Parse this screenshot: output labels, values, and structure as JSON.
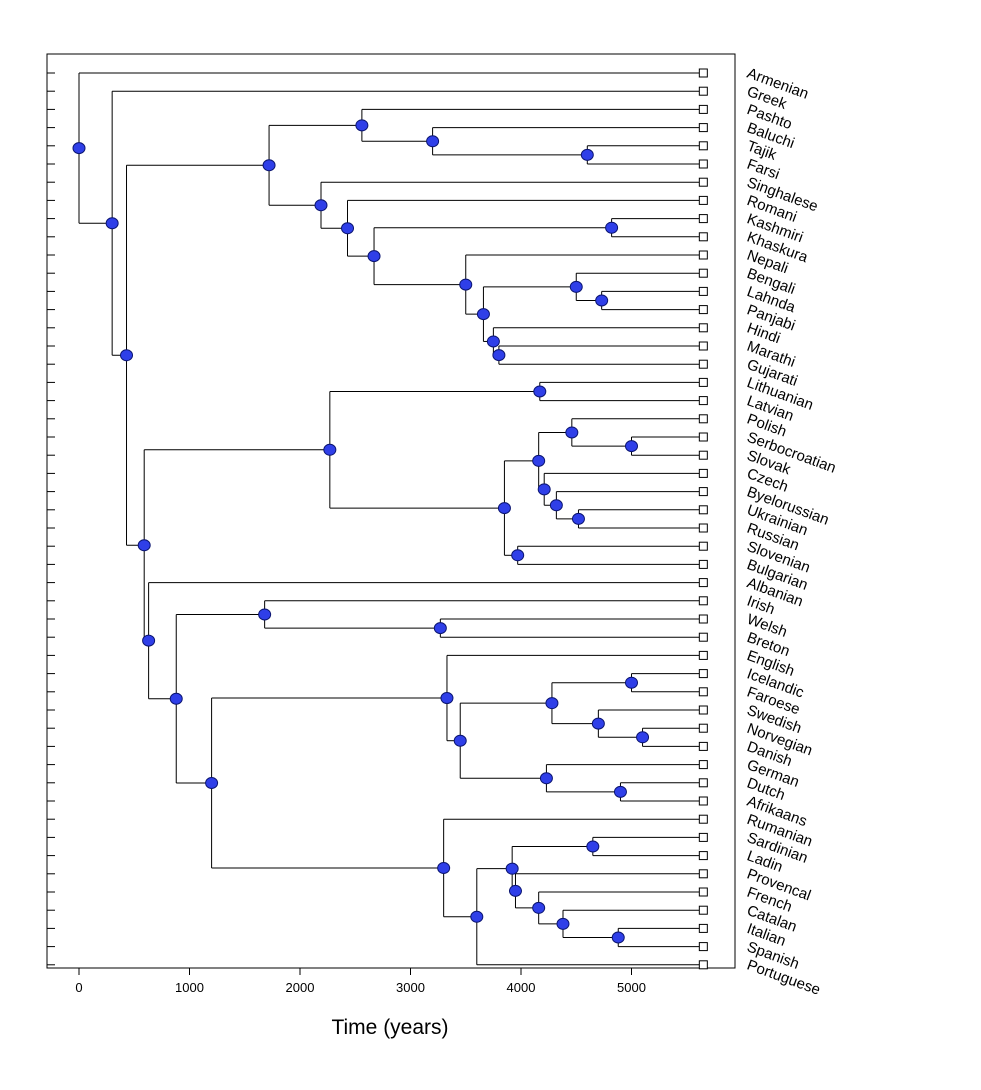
{
  "chart_data": {
    "type": "tree",
    "title": "",
    "xlabel": "Time (years)",
    "ylabel": "",
    "xlim": [
      -300,
      5900
    ],
    "xticks": [
      0,
      1000,
      2000,
      3000,
      4000,
      5000
    ],
    "leaf_time": 5650,
    "node_color": "#2f3fe8",
    "leaves": [
      "Armenian",
      "Greek",
      "Pashto",
      "Baluchi",
      "Tajik",
      "Farsi",
      "Singhalese",
      "Romani",
      "Kashmiri",
      "Khaskura",
      "Nepali",
      "Bengali",
      "Lahnda",
      "Panjabi",
      "Hindi",
      "Marathi",
      "Gujarati",
      "Lithuanian",
      "Latvian",
      "Polish",
      "Serbocroatian",
      "Slovak",
      "Czech",
      "Byelorussian",
      "Ukrainian",
      "Russian",
      "Slovenian",
      "Bulgarian",
      "Albanian",
      "Irish",
      "Welsh",
      "Breton",
      "English",
      "Icelandic",
      "Faroese",
      "Swedish",
      "Norvegian",
      "Danish",
      "German",
      "Dutch",
      "Afrikaans",
      "Rumanian",
      "Sardinian",
      "Ladin",
      "Provencal",
      "French",
      "Catalan",
      "Italian",
      "Spanish",
      "Portuguese"
    ],
    "tree": {
      "t": 0,
      "c": [
        {
          "leaf": "Armenian"
        },
        {
          "t": 300,
          "c": [
            {
              "leaf": "Greek"
            },
            {
              "t": 430,
              "c": [
                {
                  "t": 1720,
                  "c": [
                    {
                      "t": 2560,
                      "c": [
                        {
                          "leaf": "Pashto"
                        },
                        {
                          "t": 3200,
                          "c": [
                            {
                              "leaf": "Baluchi"
                            },
                            {
                              "t": 4600,
                              "c": [
                                {
                                  "leaf": "Tajik"
                                },
                                {
                                  "leaf": "Farsi"
                                }
                              ]
                            }
                          ]
                        }
                      ]
                    },
                    {
                      "t": 2190,
                      "c": [
                        {
                          "leaf": "Singhalese"
                        },
                        {
                          "t": 2430,
                          "c": [
                            {
                              "leaf": "Romani"
                            },
                            {
                              "t": 2670,
                              "c": [
                                {
                                  "t": 4820,
                                  "c": [
                                    {
                                      "leaf": "Kashmiri"
                                    },
                                    {
                                      "leaf": "Khaskura"
                                    }
                                  ]
                                },
                                {
                                  "t": 3500,
                                  "c": [
                                    {
                                      "leaf": "Nepali"
                                    },
                                    {
                                      "t": 3660,
                                      "c": [
                                        {
                                          "t": 4500,
                                          "c": [
                                            {
                                              "leaf": "Bengali"
                                            },
                                            {
                                              "t": 4730,
                                              "c": [
                                                {
                                                  "leaf": "Lahnda"
                                                },
                                                {
                                                  "leaf": "Panjabi"
                                                }
                                              ]
                                            }
                                          ]
                                        },
                                        {
                                          "t": 3750,
                                          "c": [
                                            {
                                              "leaf": "Hindi"
                                            },
                                            {
                                              "t": 3800,
                                              "c": [
                                                {
                                                  "leaf": "Marathi"
                                                },
                                                {
                                                  "leaf": "Gujarati"
                                                }
                                              ]
                                            }
                                          ]
                                        }
                                      ]
                                    }
                                  ]
                                }
                              ]
                            }
                          ]
                        }
                      ]
                    }
                  ]
                },
                {
                  "t": 590,
                  "c": [
                    {
                      "t": 2270,
                      "c": [
                        {
                          "t": 4170,
                          "c": [
                            {
                              "leaf": "Lithuanian"
                            },
                            {
                              "leaf": "Latvian"
                            }
                          ]
                        },
                        {
                          "t": 3850,
                          "c": [
                            {
                              "t": 4160,
                              "c": [
                                {
                                  "t": 4460,
                                  "c": [
                                    {
                                      "leaf": "Polish"
                                    },
                                    {
                                      "t": 5000,
                                      "c": [
                                        {
                                          "leaf": "Serbocroatian"
                                        },
                                        {
                                          "leaf": "Slovak"
                                        }
                                      ]
                                    }
                                  ]
                                },
                                {
                                  "t": 4210,
                                  "c": [
                                    {
                                      "leaf": "Czech"
                                    },
                                    {
                                      "t": 4320,
                                      "c": [
                                        {
                                          "leaf": "Byelorussian"
                                        },
                                        {
                                          "t": 4520,
                                          "c": [
                                            {
                                              "leaf": "Ukrainian"
                                            },
                                            {
                                              "leaf": "Russian"
                                            }
                                          ]
                                        }
                                      ]
                                    }
                                  ]
                                }
                              ]
                            },
                            {
                              "t": 3970,
                              "c": [
                                {
                                  "leaf": "Slovenian"
                                },
                                {
                                  "leaf": "Bulgarian"
                                }
                              ]
                            }
                          ]
                        }
                      ]
                    },
                    {
                      "t": 630,
                      "c": [
                        {
                          "leaf": "Albanian"
                        },
                        {
                          "t": 880,
                          "c": [
                            {
                              "t": 1680,
                              "c": [
                                {
                                  "leaf": "Irish"
                                },
                                {
                                  "t": 3270,
                                  "c": [
                                    {
                                      "leaf": "Welsh"
                                    },
                                    {
                                      "leaf": "Breton"
                                    }
                                  ]
                                }
                              ]
                            },
                            {
                              "t": 1200,
                              "c": [
                                {
                                  "t": 3330,
                                  "c": [
                                    {
                                      "leaf": "English"
                                    },
                                    {
                                      "t": 3450,
                                      "c": [
                                        {
                                          "t": 4280,
                                          "c": [
                                            {
                                              "t": 5000,
                                              "c": [
                                                {
                                                  "leaf": "Icelandic"
                                                },
                                                {
                                                  "leaf": "Faroese"
                                                }
                                              ]
                                            },
                                            {
                                              "t": 4700,
                                              "c": [
                                                {
                                                  "leaf": "Swedish"
                                                },
                                                {
                                                  "t": 5100,
                                                  "c": [
                                                    {
                                                      "leaf": "Norvegian"
                                                    },
                                                    {
                                                      "leaf": "Danish"
                                                    }
                                                  ]
                                                }
                                              ]
                                            }
                                          ]
                                        },
                                        {
                                          "t": 4230,
                                          "c": [
                                            {
                                              "leaf": "German"
                                            },
                                            {
                                              "t": 4900,
                                              "c": [
                                                {
                                                  "leaf": "Dutch"
                                                },
                                                {
                                                  "leaf": "Afrikaans"
                                                }
                                              ]
                                            }
                                          ]
                                        }
                                      ]
                                    }
                                  ]
                                },
                                {
                                  "t": 3300,
                                  "c": [
                                    {
                                      "leaf": "Rumanian"
                                    },
                                    {
                                      "t": 3600,
                                      "c": [
                                        {
                                          "t": 3920,
                                          "c": [
                                            {
                                              "t": 4650,
                                              "c": [
                                                {
                                                  "leaf": "Sardinian"
                                                },
                                                {
                                                  "leaf": "Ladin"
                                                }
                                              ]
                                            },
                                            {
                                              "t": 3950,
                                              "c": [
                                                {
                                                  "leaf": "Provencal"
                                                },
                                                {
                                                  "t": 4160,
                                                  "c": [
                                                    {
                                                      "leaf": "French"
                                                    },
                                                    {
                                                      "t": 4380,
                                                      "c": [
                                                        {
                                                          "leaf": "Catalan"
                                                        },
                                                        {
                                                          "t": 4880,
                                                          "c": [
                                                            {
                                                              "leaf": "Italian"
                                                            },
                                                            {
                                                              "leaf": "Spanish"
                                                            }
                                                          ]
                                                        }
                                                      ]
                                                    }
                                                  ]
                                                }
                                              ]
                                            }
                                          ]
                                        },
                                        {
                                          "leaf": "Portuguese"
                                        }
                                      ]
                                    }
                                  ]
                                }
                              ]
                            }
                          ]
                        }
                      ]
                    }
                  ]
                }
              ]
            }
          ]
        }
      ]
    }
  }
}
